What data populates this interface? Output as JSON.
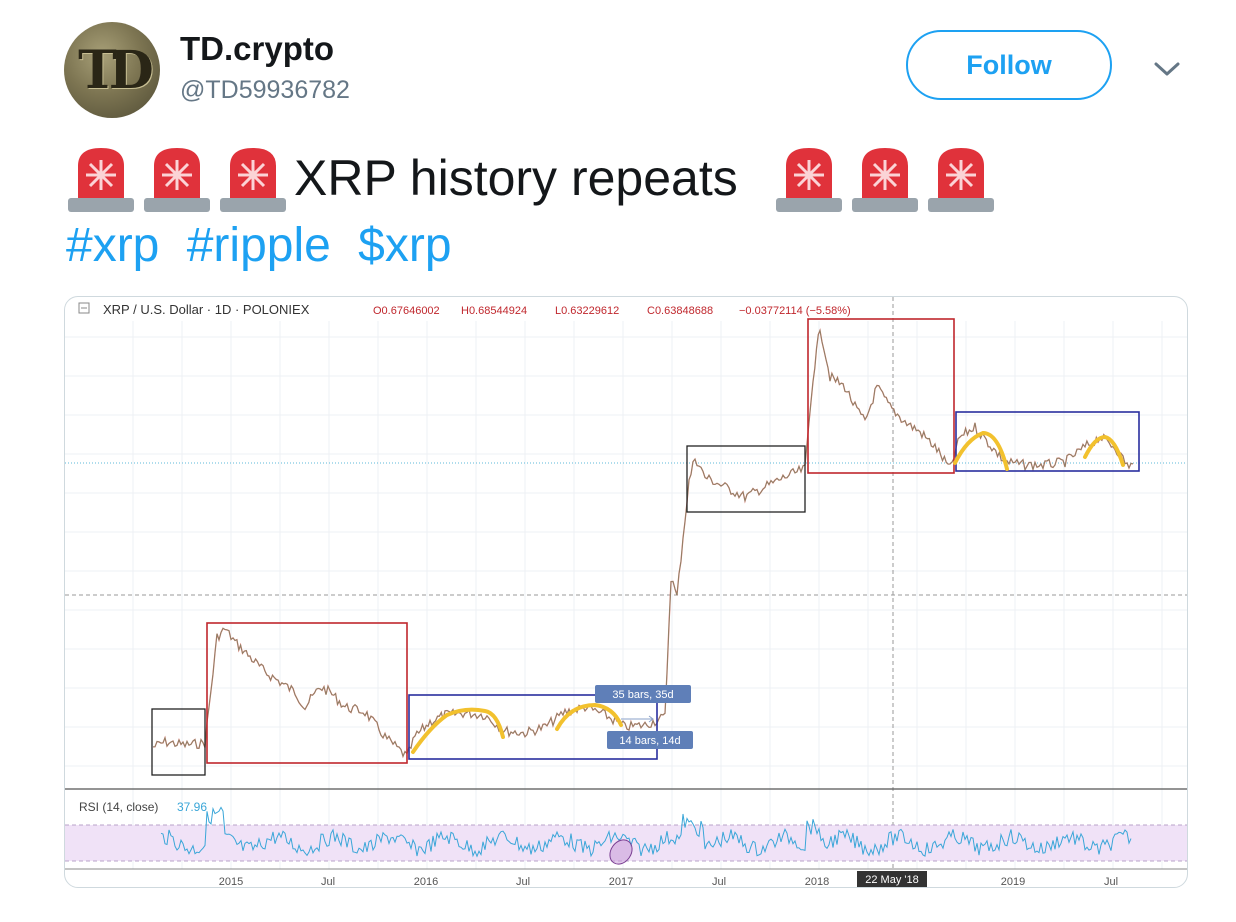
{
  "user": {
    "display_name": "TD.crypto",
    "handle": "@TD59936782",
    "avatar_text": "TD"
  },
  "actions": {
    "follow_label": "Follow"
  },
  "tweet": {
    "text": "XRP history repeats",
    "hashtags": [
      "#xrp",
      "#ripple",
      "$xrp"
    ]
  },
  "colors": {
    "accent": "#1da1f2",
    "siren": "#e0323b",
    "box_red": "#c0272d",
    "box_blue": "#2a2f9e",
    "highlight": "#f2c12e",
    "rsi_line": "#3aa6d8",
    "rsi_band": "#f0e2f7"
  },
  "chart_data": {
    "type": "line",
    "header": {
      "symbol": "XRP / U.S. Dollar · 1D · POLONIEX",
      "open": "O0.67646002",
      "high": "H0.68544924",
      "low": "L0.63229612",
      "close": "C0.63848688",
      "change": "−0.03772114 (−5.58%)"
    },
    "x_ticks": [
      "2015",
      "Jul",
      "2016",
      "Jul",
      "2017",
      "Jul",
      "2018",
      "22 May '18",
      "2019",
      "Jul"
    ],
    "annotations": [
      "35 bars, 35d",
      "14 bars, 14d"
    ],
    "rsi": {
      "label": "RSI (14, close)",
      "value": "37.96"
    }
  }
}
